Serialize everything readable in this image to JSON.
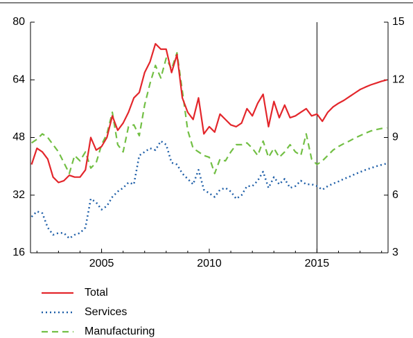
{
  "chart_data": {
    "type": "line",
    "x": [
      2001.75,
      2002,
      2002.25,
      2002.5,
      2002.75,
      2003,
      2003.25,
      2003.5,
      2003.75,
      2004,
      2004.25,
      2004.5,
      2004.75,
      2005,
      2005.25,
      2005.5,
      2005.75,
      2006,
      2006.25,
      2006.5,
      2006.75,
      2007,
      2007.25,
      2007.5,
      2007.75,
      2008,
      2008.25,
      2008.5,
      2008.75,
      2009,
      2009.25,
      2009.5,
      2009.75,
      2010,
      2010.25,
      2010.5,
      2010.75,
      2011,
      2011.25,
      2011.5,
      2011.75,
      2012,
      2012.25,
      2012.5,
      2012.75,
      2013,
      2013.25,
      2013.5,
      2013.75,
      2014,
      2014.25,
      2014.5,
      2014.75,
      2015,
      2015.25,
      2015.5,
      2015.75,
      2016,
      2016.25,
      2016.5,
      2016.75,
      2017,
      2017.25,
      2017.5,
      2017.75,
      2018,
      2018.25
    ],
    "series": [
      {
        "name": "Total",
        "color": "#e3262b",
        "dash": "solid",
        "values": [
          40.5,
          45,
          44,
          42,
          37,
          35.5,
          36,
          37.5,
          37,
          37,
          39,
          48,
          44.5,
          45.5,
          48,
          54,
          50,
          52,
          55,
          59,
          60.5,
          66,
          69,
          74,
          72.5,
          72.5,
          66,
          71,
          59,
          55,
          53,
          59,
          49,
          51,
          49.5,
          54.5,
          53,
          51.5,
          51,
          52,
          56,
          54,
          57.5,
          60,
          51,
          58,
          53.5,
          57,
          53.5,
          54,
          55,
          56,
          54,
          54.5,
          52.5,
          55,
          56.5,
          57.5,
          58.3,
          59.3,
          60.3,
          61.3,
          62,
          62.6,
          63.1,
          63.6,
          64
        ]
      },
      {
        "name": "Services",
        "color": "#1f5fa8",
        "dash": "dotted",
        "values": [
          26,
          27.5,
          27,
          23,
          21,
          21.5,
          21.5,
          20,
          21,
          21.5,
          23,
          31,
          30,
          28,
          29,
          31.5,
          33,
          34,
          35.5,
          35,
          43,
          44,
          45,
          44.5,
          47,
          46,
          41,
          40.5,
          38,
          36.5,
          35,
          39,
          33.5,
          32.5,
          31.5,
          33.5,
          34,
          33,
          31,
          32,
          34.5,
          34.5,
          36,
          38.5,
          34,
          37,
          35,
          36.5,
          34,
          34.5,
          36,
          35,
          35,
          34.5,
          33.5,
          34.5,
          35.2,
          35.8,
          36.5,
          37.1,
          37.8,
          38.4,
          39,
          39.5,
          40,
          40.4,
          40.8
        ]
      },
      {
        "name": "Manufacturing",
        "color": "#72bf44",
        "dash": "dashed",
        "values": [
          46.5,
          47.5,
          49,
          48,
          46,
          44,
          41,
          38,
          43,
          41.5,
          44,
          39.5,
          41,
          46,
          49,
          55,
          46,
          44,
          51,
          51.5,
          48.5,
          57,
          63,
          68,
          64.5,
          70,
          67,
          71.5,
          61,
          50,
          45,
          44,
          43,
          42.5,
          38,
          42,
          41.5,
          44,
          46,
          46,
          46.5,
          45,
          43,
          47,
          42.5,
          45,
          42.5,
          44,
          46,
          44,
          43,
          49,
          42,
          40.5,
          41.5,
          43,
          44.5,
          45.5,
          46.3,
          47,
          47.8,
          48.5,
          49.2,
          49.8,
          50.2,
          50.5,
          50.7
        ]
      }
    ],
    "xlim": [
      2001.7,
      2018.3
    ],
    "xticks": [
      2005,
      2010,
      2015
    ],
    "ylim": [
      16,
      80
    ],
    "yticks": [
      16,
      32,
      48,
      64,
      80
    ],
    "y2lim": [
      3,
      15
    ],
    "y2ticks": [
      3,
      6,
      9,
      12,
      15
    ],
    "vline": 2015
  }
}
